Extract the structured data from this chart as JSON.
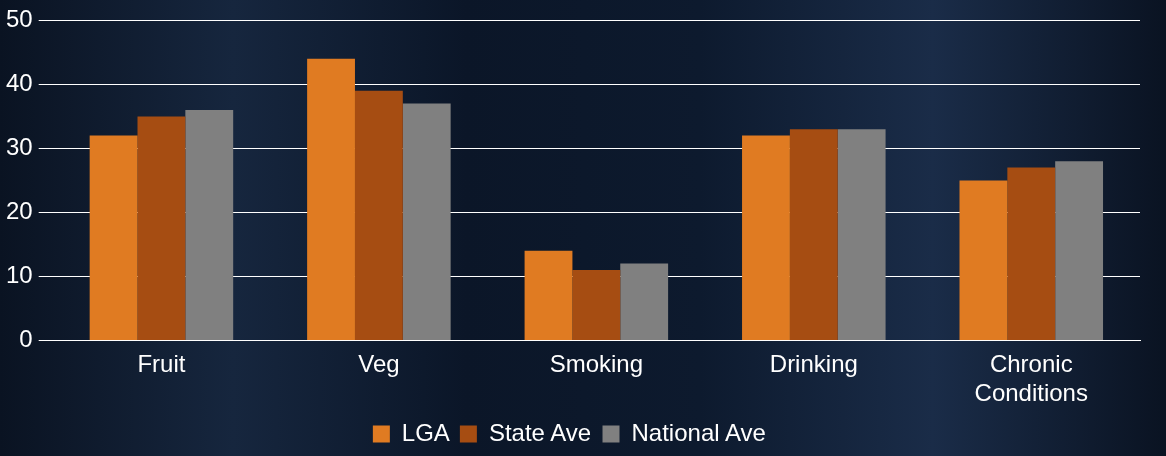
{
  "chart_data": {
    "type": "bar",
    "categories": [
      "Fruit",
      "Veg",
      "Smoking",
      "Drinking",
      "Chronic Conditions"
    ],
    "series": [
      {
        "name": "LGA",
        "color": "#e07b22",
        "values": [
          32,
          44,
          14,
          32,
          25
        ]
      },
      {
        "name": "State Ave",
        "color": "#a64d12",
        "values": [
          35,
          39,
          11,
          33,
          27
        ]
      },
      {
        "name": "National Ave",
        "color": "#808080",
        "values": [
          36,
          37,
          12,
          33,
          28
        ]
      }
    ],
    "ylim": [
      0,
      50
    ],
    "yticks": [
      0,
      10,
      20,
      30,
      40,
      50
    ],
    "grid": "y",
    "legend": "bottom"
  }
}
